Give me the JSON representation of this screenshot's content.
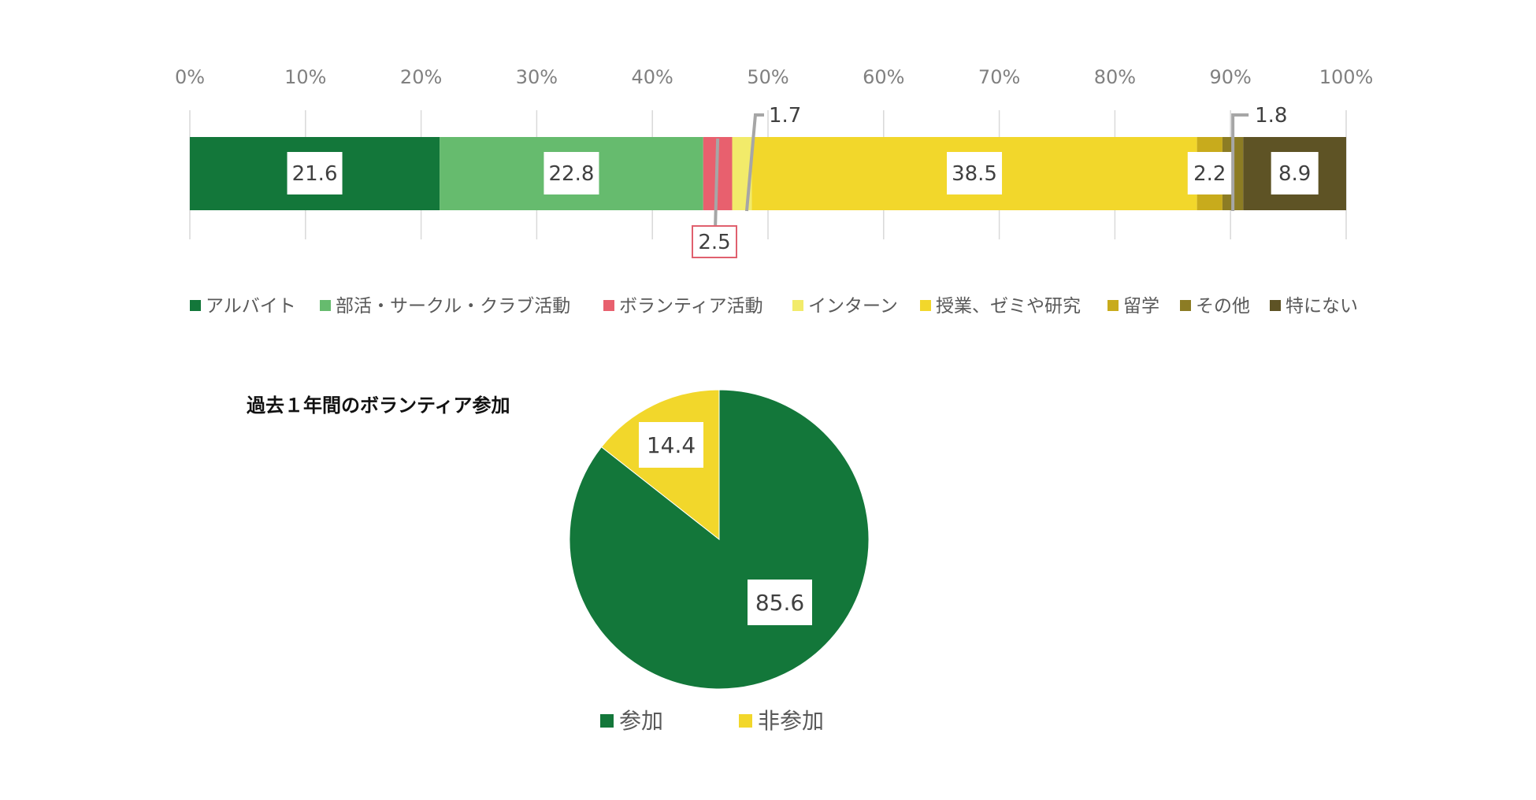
{
  "chart_data": [
    {
      "type": "bar",
      "orientation": "horizontal-stacked-100",
      "x_ticks": [
        "0%",
        "10%",
        "20%",
        "30%",
        "40%",
        "50%",
        "60%",
        "70%",
        "80%",
        "90%",
        "100%"
      ],
      "xlim": [
        0,
        100
      ],
      "grid": true,
      "legend_position": "bottom",
      "series": [
        {
          "name": "アルバイト",
          "value": 21.6,
          "label": "21.6",
          "color": "#13773A"
        },
        {
          "name": "部活・サークル・クラブ活動",
          "value": 22.8,
          "label": "22.8",
          "color": "#66BB6E"
        },
        {
          "name": "ボランティア活動",
          "value": 2.5,
          "label": "2.5",
          "color": "#E8606E"
        },
        {
          "name": "インターン",
          "value": 1.7,
          "label": "1.7",
          "color": "#F2EB6A"
        },
        {
          "name": "授業、ゼミや研究",
          "value": 38.5,
          "label": "38.5",
          "color": "#F2D72B"
        },
        {
          "name": "留学",
          "value": 2.2,
          "label": "2.2",
          "color": "#C8AB1C"
        },
        {
          "name": "その他",
          "value": 1.8,
          "label": "1.8",
          "color": "#8C7C24"
        },
        {
          "name": "特にない",
          "value": 8.9,
          "label": "8.9",
          "color": "#5E5325"
        }
      ]
    },
    {
      "type": "pie",
      "title": "過去１年間のボランティア参加",
      "legend_position": "bottom",
      "slices": [
        {
          "name": "参加",
          "value": 85.6,
          "label": "85.6",
          "color": "#13773A"
        },
        {
          "name": "非参加",
          "value": 14.4,
          "label": "14.4",
          "color": "#F2D72B"
        }
      ]
    }
  ]
}
